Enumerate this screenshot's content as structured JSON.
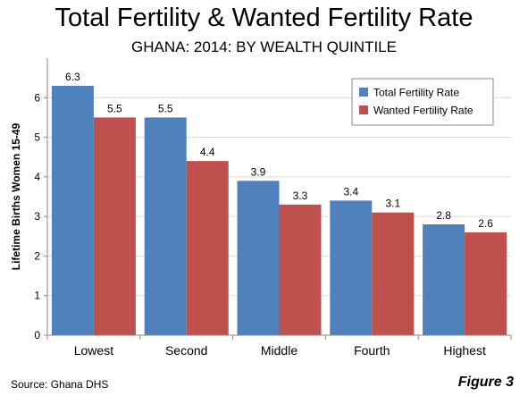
{
  "header": {
    "title": "Total Fertility & Wanted Fertility Rate",
    "subtitle": "GHANA: 2014: BY WEALTH QUINTILE"
  },
  "footer": {
    "source": "Source: Ghana DHS",
    "figure": "Figure 3"
  },
  "chart_data": {
    "type": "bar",
    "title": "Total Fertility & Wanted Fertility Rate",
    "subtitle": "GHANA: 2014: BY WEALTH QUINTILE",
    "xlabel": "",
    "ylabel": "Lifetime Births Women 15-49",
    "ylim": [
      0,
      7
    ],
    "yticks": [
      0,
      1,
      2,
      3,
      4,
      5,
      6
    ],
    "grid": true,
    "legend_position": "top-right",
    "categories": [
      "Lowest",
      "Second",
      "Middle",
      "Fourth",
      "Highest"
    ],
    "series": [
      {
        "name": "Total Fertility Rate",
        "color": "#4F81BD",
        "values": [
          6.3,
          5.5,
          3.9,
          3.4,
          2.8
        ]
      },
      {
        "name": "Wanted Fertility Rate",
        "color": "#C0504D",
        "values": [
          5.5,
          4.4,
          3.3,
          3.1,
          2.6
        ]
      }
    ]
  }
}
